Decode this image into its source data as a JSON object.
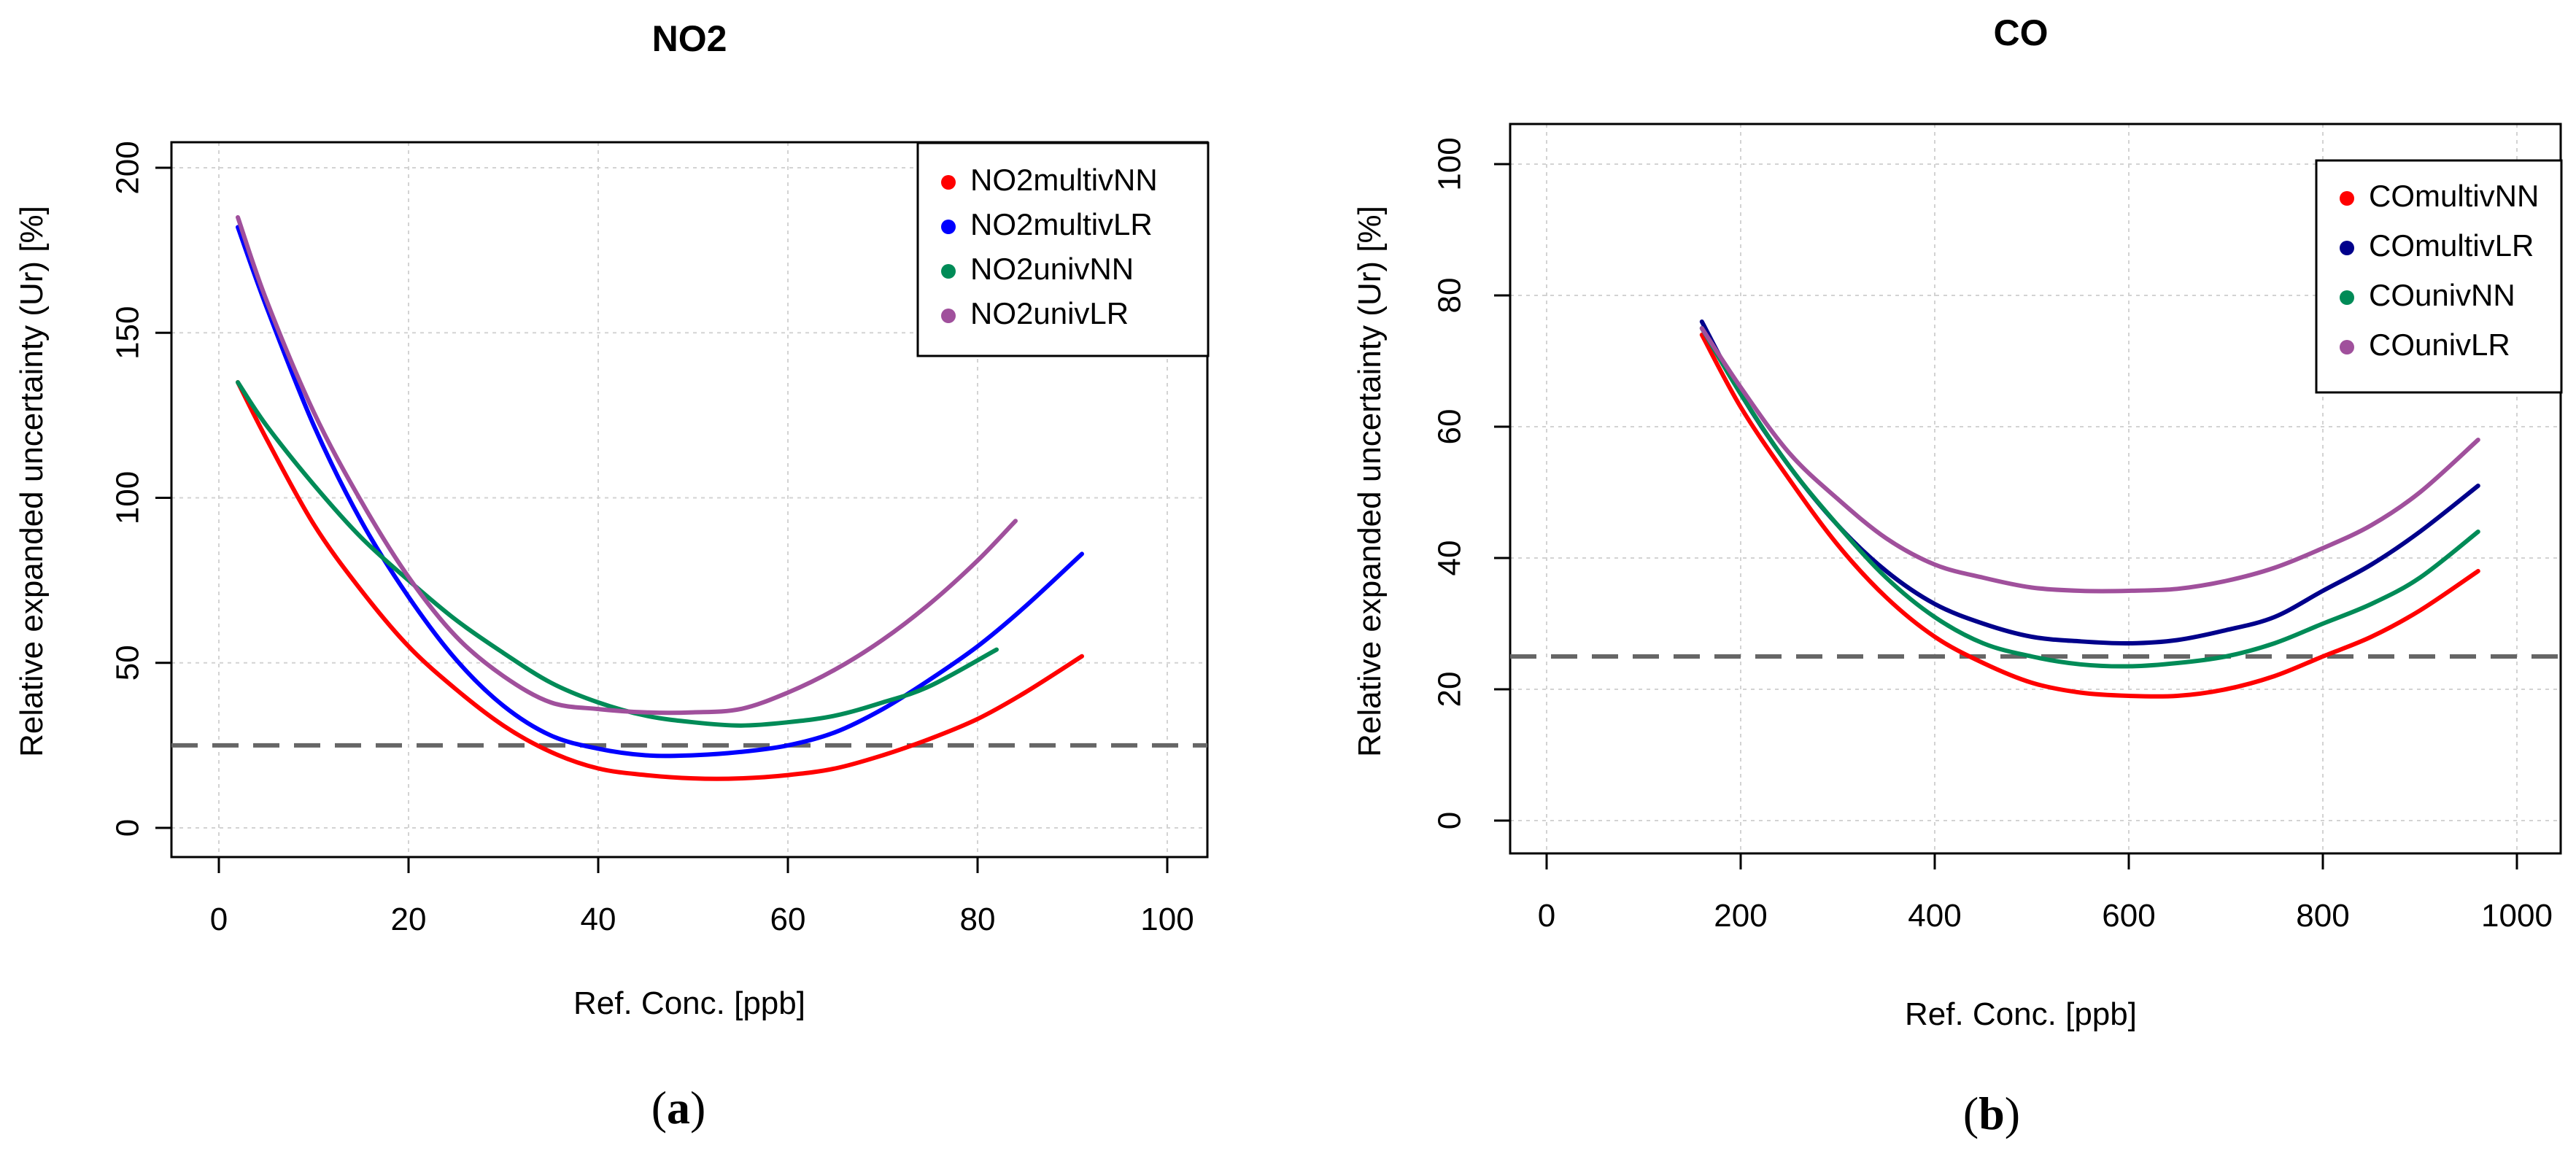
{
  "colors": {
    "multivNN": "#ff0000",
    "multivLR_a": "#0000ff",
    "multivLR_b": "#00008b",
    "univNN": "#008b57",
    "univLR": "#a0509c",
    "threshold": "#666666",
    "grid": "#d3d3d3"
  },
  "chart_data": [
    {
      "id": "a",
      "type": "line",
      "title": "NO2",
      "caption_letter": "a",
      "xlabel": "Ref. Conc. [ppb]",
      "ylabel": "Relative expanded uncertainty (Ur) [%]",
      "xlim": [
        0,
        100
      ],
      "ylim": [
        0,
        200
      ],
      "xticks": [
        0,
        20,
        40,
        60,
        80,
        100
      ],
      "yticks": [
        0,
        50,
        100,
        150,
        200
      ],
      "grid": true,
      "legend_position": "top-right",
      "threshold": 25,
      "series": [
        {
          "name": "NO2multivNN",
          "color": "#ff0000",
          "x": [
            2,
            5,
            10,
            15,
            20,
            25,
            30,
            35,
            40,
            45,
            50,
            55,
            60,
            65,
            70,
            75,
            80,
            85,
            91
          ],
          "y": [
            135,
            118,
            92,
            72,
            55,
            42,
            31,
            23,
            18,
            16,
            15,
            15,
            16,
            18,
            22,
            27,
            33,
            41,
            52
          ]
        },
        {
          "name": "NO2multivLR",
          "color": "#0000ff",
          "x": [
            2,
            5,
            10,
            15,
            20,
            25,
            30,
            35,
            40,
            45,
            50,
            55,
            60,
            65,
            70,
            75,
            80,
            85,
            91
          ],
          "y": [
            182,
            158,
            122,
            93,
            70,
            51,
            37,
            28,
            24,
            22,
            22,
            23,
            25,
            29,
            36,
            45,
            55,
            67,
            83
          ]
        },
        {
          "name": "NO2univNN",
          "color": "#008b57",
          "x": [
            2,
            5,
            10,
            15,
            20,
            25,
            30,
            35,
            40,
            45,
            50,
            55,
            60,
            65,
            70,
            75,
            82
          ],
          "y": [
            135,
            122,
            104,
            88,
            75,
            63,
            53,
            44,
            38,
            34,
            32,
            31,
            32,
            34,
            38,
            43,
            54
          ]
        },
        {
          "name": "NO2univLR",
          "color": "#a0509c",
          "x": [
            2,
            5,
            10,
            15,
            20,
            25,
            30,
            35,
            40,
            45,
            50,
            55,
            60,
            65,
            70,
            75,
            80,
            84
          ],
          "y": [
            185,
            160,
            126,
            99,
            76,
            58,
            46,
            38,
            36,
            35,
            35,
            36,
            41,
            48,
            57,
            68,
            81,
            93
          ]
        }
      ]
    },
    {
      "id": "b",
      "type": "line",
      "title": "CO",
      "caption_letter": "b",
      "xlabel": "Ref. Conc. [ppb]",
      "ylabel": "Relative expanded uncertainty (Ur) [%]",
      "xlim": [
        0,
        1000
      ],
      "ylim": [
        0,
        100
      ],
      "xticks": [
        0,
        200,
        400,
        600,
        800,
        1000
      ],
      "yticks": [
        0,
        20,
        40,
        60,
        80,
        100
      ],
      "grid": true,
      "legend_position": "top-right",
      "threshold": 25,
      "series": [
        {
          "name": "COmultivNN",
          "color": "#ff0000",
          "x": [
            160,
            200,
            250,
            300,
            350,
            400,
            450,
            500,
            550,
            600,
            650,
            700,
            750,
            800,
            850,
            900,
            960
          ],
          "y": [
            74,
            63,
            52,
            42,
            34,
            28,
            24,
            21,
            19.5,
            19,
            19,
            20,
            22,
            25,
            28,
            32,
            38
          ]
        },
        {
          "name": "COmultivLR",
          "color": "#00008b",
          "x": [
            160,
            200,
            250,
            300,
            350,
            400,
            450,
            500,
            550,
            600,
            650,
            700,
            750,
            800,
            850,
            900,
            960
          ],
          "y": [
            76,
            65,
            54,
            45,
            38,
            33,
            30,
            28,
            27.3,
            27,
            27.5,
            29,
            31,
            35,
            39,
            44,
            51
          ]
        },
        {
          "name": "COunivNN",
          "color": "#008b57",
          "x": [
            160,
            200,
            250,
            300,
            350,
            400,
            450,
            500,
            550,
            600,
            650,
            700,
            750,
            800,
            850,
            900,
            960
          ],
          "y": [
            75,
            65,
            54,
            45,
            37,
            31,
            27,
            25,
            23.8,
            23.5,
            24,
            25,
            27,
            30,
            33,
            37,
            44
          ]
        },
        {
          "name": "COunivLR",
          "color": "#a0509c",
          "x": [
            160,
            200,
            250,
            300,
            350,
            400,
            450,
            500,
            550,
            600,
            650,
            700,
            750,
            800,
            850,
            900,
            960
          ],
          "y": [
            75,
            66,
            56,
            49,
            43,
            39,
            37,
            35.5,
            35,
            35,
            35.3,
            36.5,
            38.5,
            41.5,
            45,
            50,
            58
          ]
        }
      ]
    }
  ]
}
